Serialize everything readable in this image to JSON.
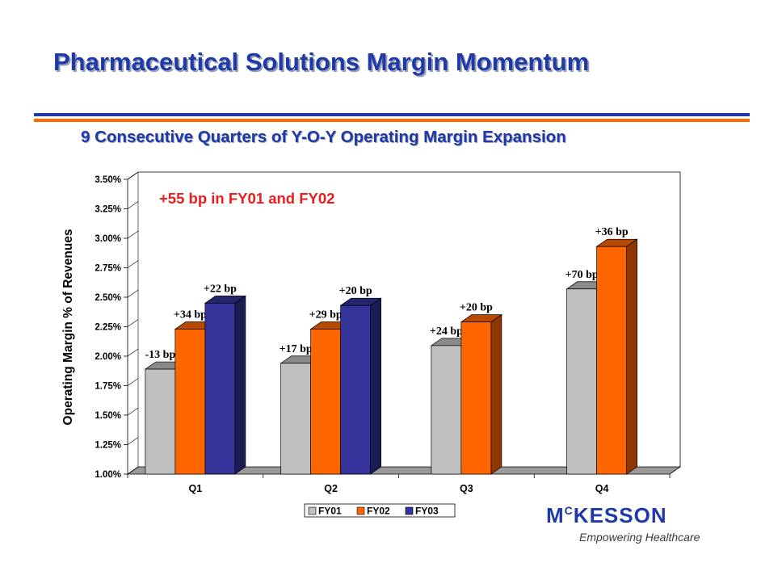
{
  "slide": {
    "title": "Pharmaceutical Solutions Margin Momentum",
    "subtitle": "9 Consecutive Quarters of Y-O-Y Operating Margin Expansion",
    "callout": "+55 bp in FY01 and FY02"
  },
  "logo": {
    "name_prefix": "M",
    "name_sup": "C",
    "name_suffix": "KESSON",
    "tagline": "Empowering Healthcare"
  },
  "colors": {
    "title": "#1f3aa8",
    "rule_blue": "#1f3aa8",
    "rule_orange": "#ff6a00",
    "callout": "#e81e1e"
  },
  "chart_data": {
    "type": "bar",
    "categories": [
      "Q1",
      "Q2",
      "Q3",
      "Q4"
    ],
    "ylabel": "Operating Margin % of Revenues",
    "ylim": [
      1.0,
      3.5
    ],
    "y_ticks": [
      "1.00%",
      "1.25%",
      "1.50%",
      "1.75%",
      "2.00%",
      "2.25%",
      "2.50%",
      "2.75%",
      "3.00%",
      "3.25%",
      "3.50%"
    ],
    "legend_position": "bottom",
    "series": [
      {
        "name": "FY01",
        "color": "#c0c0c0",
        "values": [
          1.89,
          1.94,
          2.09,
          2.57
        ],
        "labels": [
          "-13 bp",
          "+17 bp",
          "+24 bp",
          "+70 bp"
        ]
      },
      {
        "name": "FY02",
        "color": "#ff6600",
        "values": [
          2.23,
          2.23,
          2.29,
          2.93
        ],
        "labels": [
          "+34 bp",
          "+29 bp",
          "+20 bp",
          "+36 bp"
        ]
      },
      {
        "name": "FY03",
        "color": "#333399",
        "values": [
          2.45,
          2.43,
          null,
          null
        ],
        "labels": [
          "+22 bp",
          "+20 bp",
          "",
          ""
        ]
      }
    ]
  }
}
